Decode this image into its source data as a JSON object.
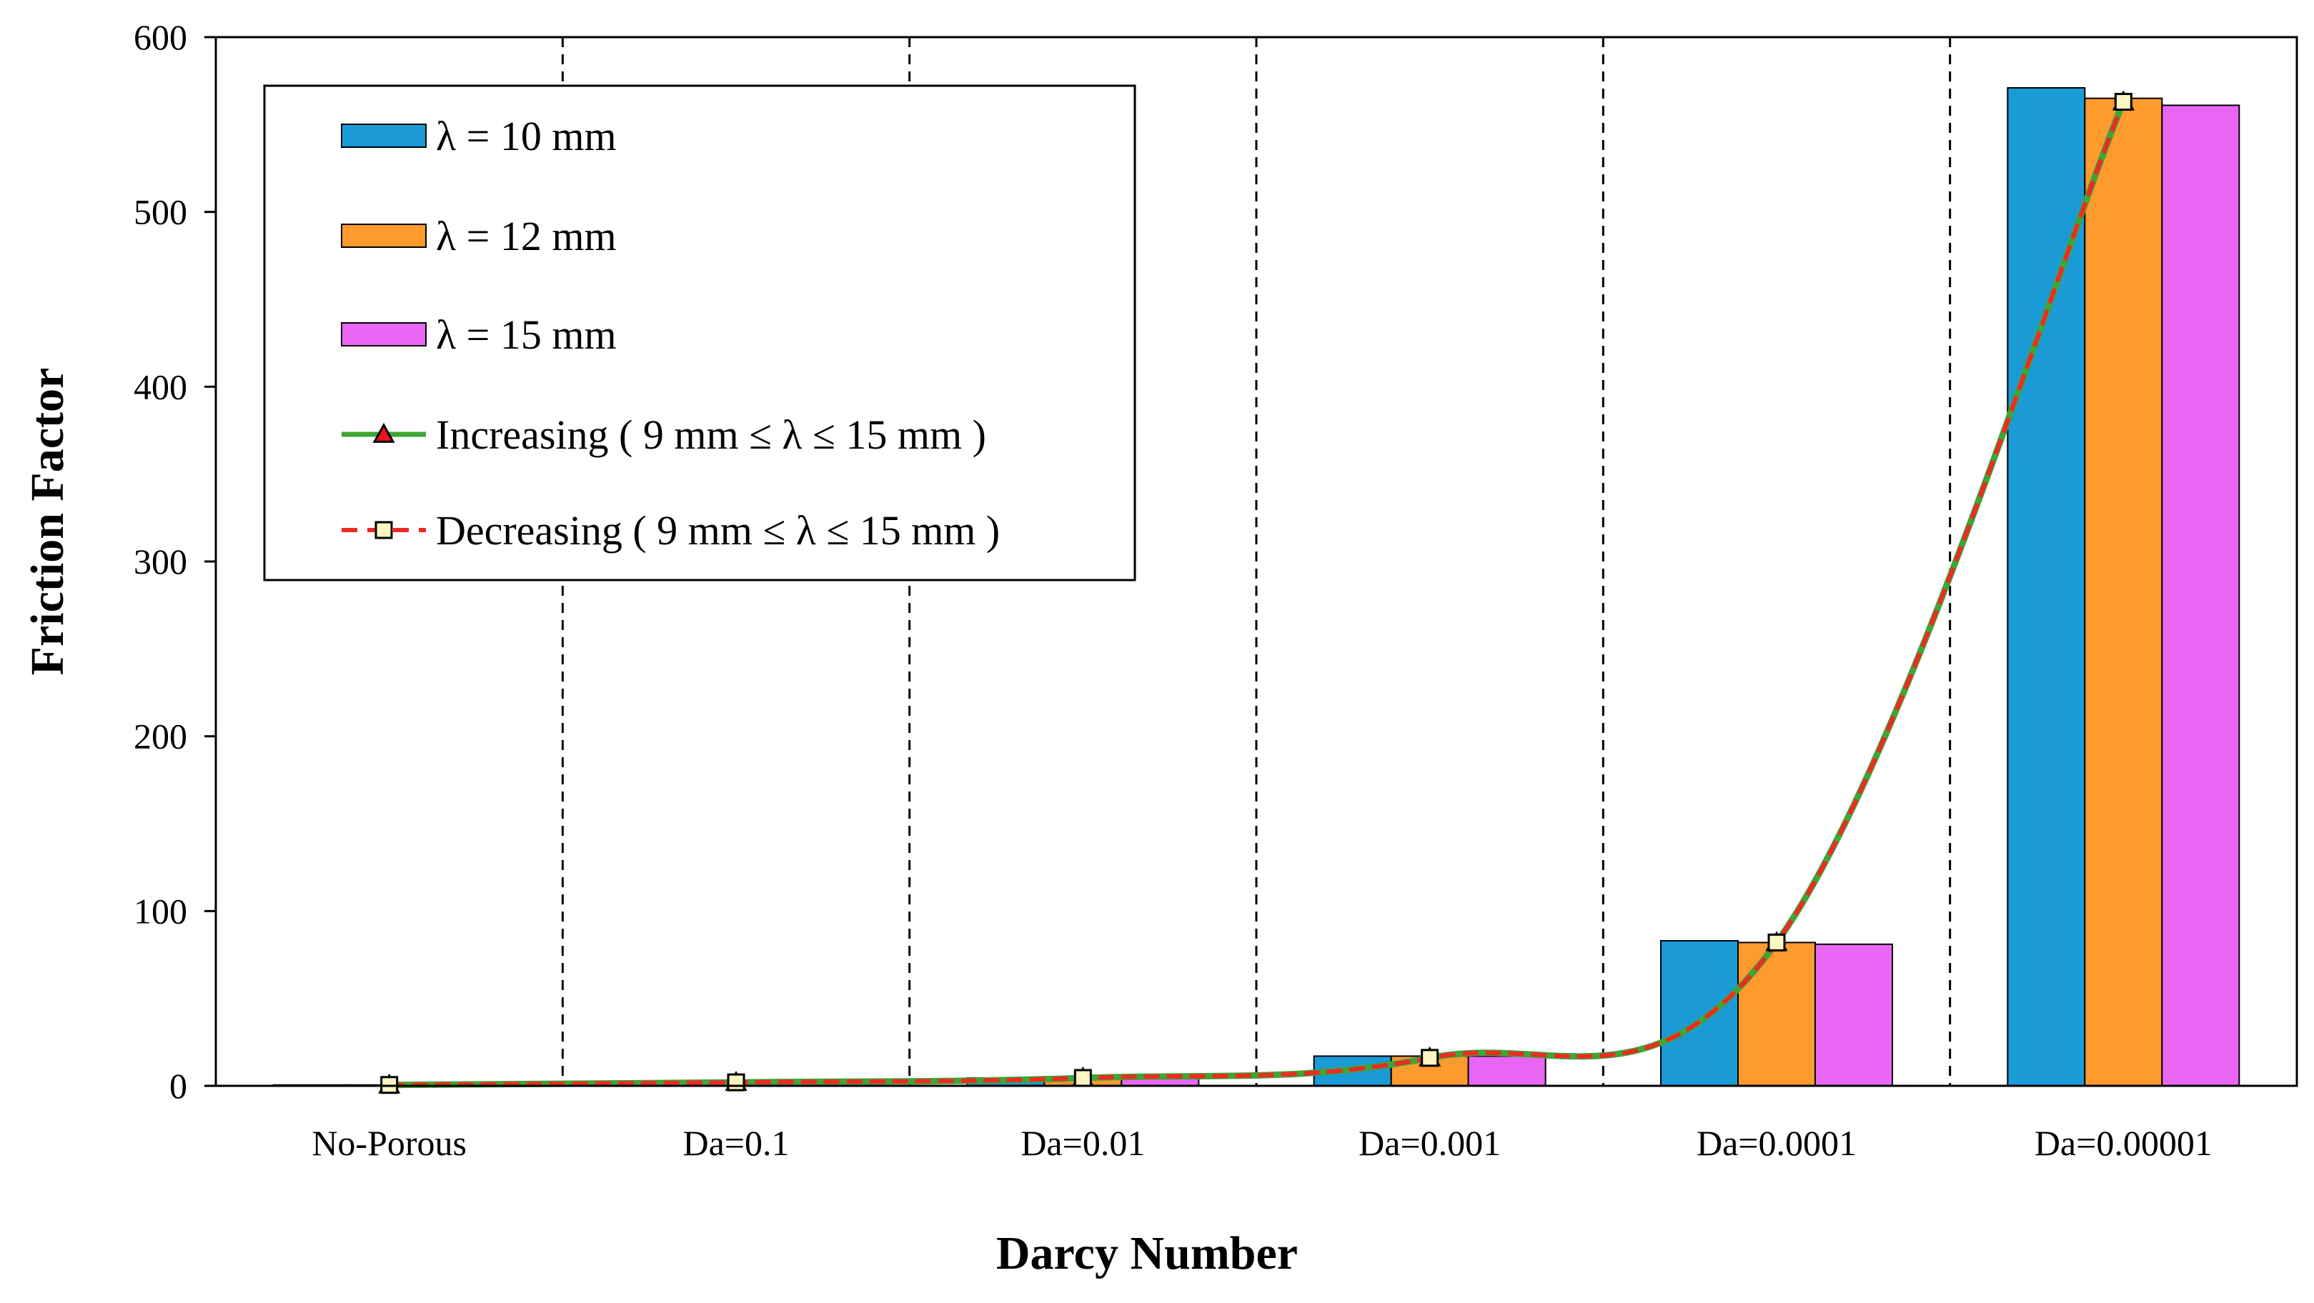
{
  "chart_data": {
    "type": "bar",
    "title": "",
    "xlabel": "Darcy Number",
    "ylabel": "Friction Factor",
    "ylim": [
      0,
      600
    ],
    "yticks": [
      0,
      100,
      200,
      300,
      400,
      500,
      600
    ],
    "grid": false,
    "category_separators": "dashed",
    "legend_position": "top-left",
    "categories": [
      "No-Porous",
      "Da=0.1",
      "Da=0.01",
      "Da=0.001",
      "Da=0.0001",
      "Da=0.00001"
    ],
    "series": [
      {
        "name": "λ = 10 mm",
        "kind": "bar",
        "color": "#1a9bd6",
        "values": [
          0.5,
          1.5,
          4.5,
          17,
          83,
          571
        ]
      },
      {
        "name": "λ = 12 mm",
        "kind": "bar",
        "color": "#ff9a2e",
        "values": [
          0.5,
          1.5,
          4.5,
          17,
          82,
          565
        ]
      },
      {
        "name": "λ = 15 mm",
        "kind": "bar",
        "color": "#e966f5",
        "values": [
          0.5,
          1.5,
          4.5,
          17,
          81,
          561
        ]
      },
      {
        "name": "Increasing ( 9 mm ≤ λ ≤ 15 mm )",
        "kind": "line",
        "color": "#3fa535",
        "line_style": "solid",
        "marker": "triangle",
        "marker_color": "#e8141b",
        "values": [
          0.5,
          2,
          4.5,
          16,
          82,
          563
        ]
      },
      {
        "name": "Decreasing ( 9 mm ≤ λ ≤ 15 mm )",
        "kind": "line",
        "color": "#ee2a24",
        "line_style": "dashed",
        "marker": "square",
        "marker_color": "#fdf6c0",
        "values": [
          0.5,
          2,
          4.5,
          16,
          82,
          563
        ]
      }
    ]
  }
}
